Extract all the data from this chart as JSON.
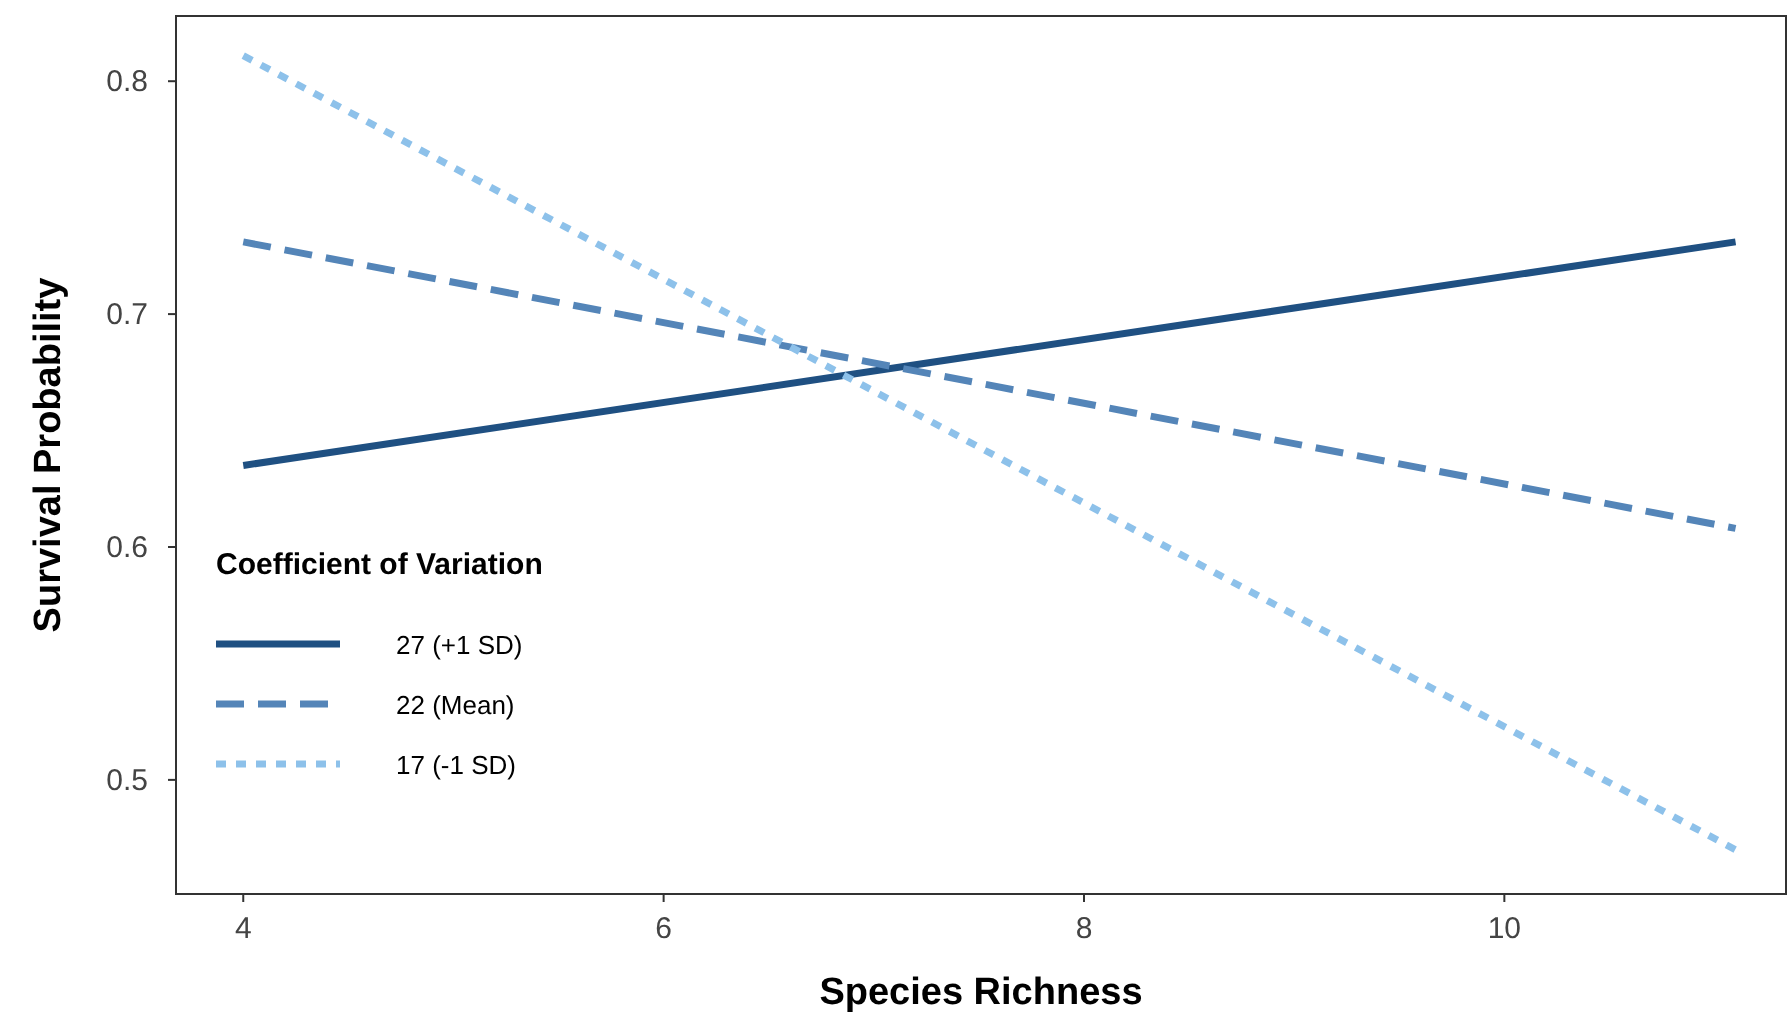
{
  "chart_data": {
    "type": "line",
    "xlabel": "Species Richness",
    "ylabel": "Survival Probability",
    "legend_title": "Coefficient of Variation",
    "legend": "bottom left",
    "grid": false,
    "marker": "none",
    "x": [
      4,
      11.1
    ],
    "xlim": [
      3.68,
      11.34
    ],
    "xticks": [
      4,
      6,
      8,
      10
    ],
    "ylim": [
      0.451,
      0.828
    ],
    "yticks": [
      0.5,
      0.6,
      0.7,
      0.8
    ],
    "series": [
      {
        "name": "27 (+1 SD)",
        "color": "#1f5082",
        "line_style": "solid",
        "values": [
          0.635,
          0.731
        ]
      },
      {
        "name": "22 (Mean)",
        "color": "#5485b8",
        "line_style": "dashed",
        "values": [
          0.731,
          0.608
        ]
      },
      {
        "name": "17 (-1 SD)",
        "color": "#8dc1ea",
        "line_style": "dotted",
        "values": [
          0.811,
          0.47
        ]
      }
    ]
  }
}
